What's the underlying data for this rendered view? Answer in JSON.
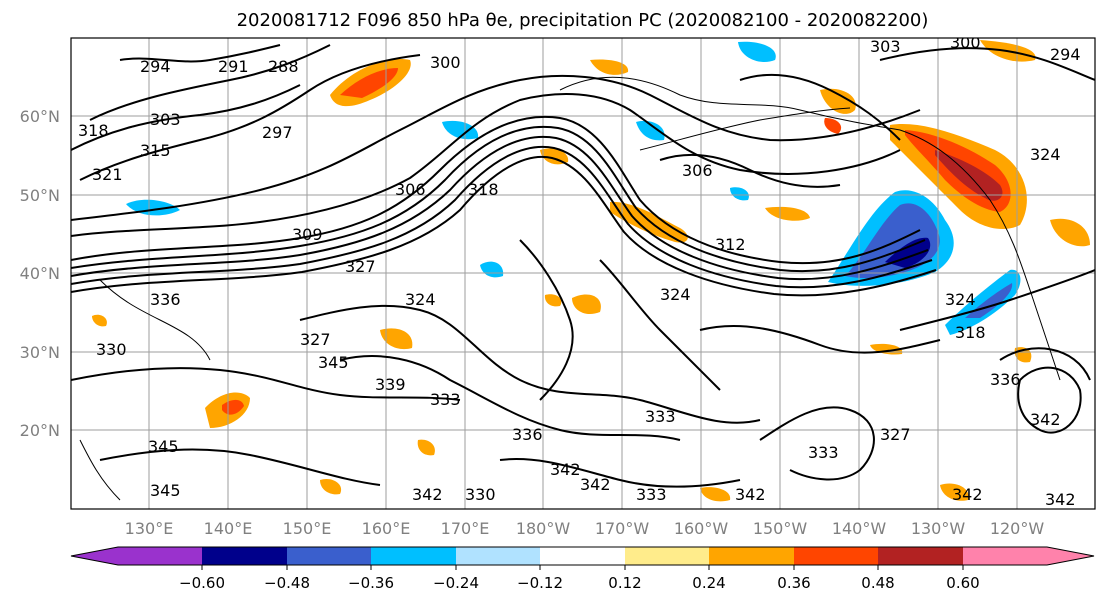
{
  "title": "2020081712 F096 850 hPa θe, precipitation PC (2020082100 - 2020082200)",
  "map": {
    "lat_ticks": [
      "60°N",
      "50°N",
      "40°N",
      "30°N",
      "20°N"
    ],
    "lon_ticks": [
      "130°E",
      "140°E",
      "150°E",
      "160°E",
      "170°E",
      "180°W",
      "170°W",
      "160°W",
      "150°W",
      "140°W",
      "130°W",
      "120°W"
    ],
    "contour_labels": [
      "294",
      "291",
      "288",
      "300",
      "303",
      "300",
      "294",
      "318",
      "303",
      "297",
      "315",
      "321",
      "324",
      "306",
      "306",
      "318",
      "312",
      "327",
      "309",
      "324",
      "324",
      "324",
      "336",
      "318",
      "330",
      "345",
      "339",
      "333",
      "333",
      "342",
      "327",
      "336",
      "333",
      "342",
      "345",
      "342",
      "333",
      "345",
      "330",
      "342",
      "342",
      "342",
      "342",
      "327",
      "336"
    ]
  },
  "colorbar": {
    "ticks": [
      "−0.60",
      "−0.48",
      "−0.36",
      "−0.24",
      "−0.12",
      "0.12",
      "0.24",
      "0.36",
      "0.48",
      "0.60"
    ],
    "colors": [
      "#9a32cd",
      "#00008b",
      "#3a5fcd",
      "#00bfff",
      "#b0e2ff",
      "#ffffff",
      "#ffec8b",
      "#ffa500",
      "#ff4500",
      "#b22222",
      "#ff82ab"
    ]
  }
}
